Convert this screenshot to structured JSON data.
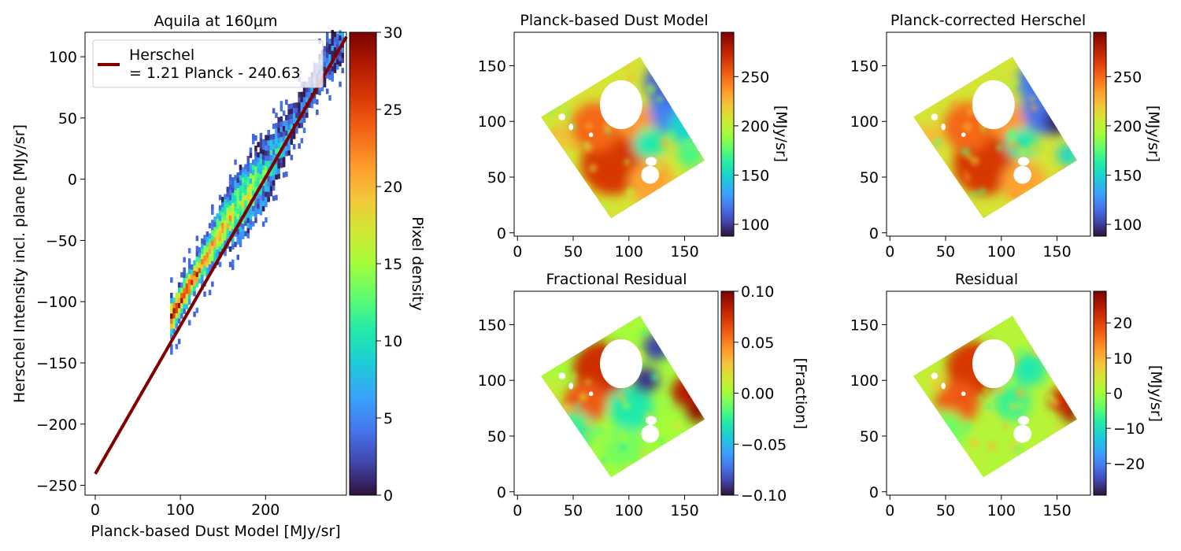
{
  "chart_data": [
    {
      "type": "heatmap",
      "title": "Aquila at 160μm",
      "xlabel": "Planck-based Dust Model [MJy/sr]",
      "ylabel": "Herschel Intensity incl. plane [MJy/sr]",
      "xlim": [
        -12,
        295
      ],
      "ylim": [
        -258,
        120
      ],
      "xticks": [
        0,
        100,
        200
      ],
      "yticks": [
        100,
        50,
        0,
        -50,
        -100,
        -150,
        -200,
        -250
      ],
      "colorbar": {
        "label": "Pixel density",
        "range": [
          0,
          30
        ],
        "ticks": [
          0,
          5,
          10,
          15,
          20,
          25,
          30
        ],
        "colormap": "turbo"
      },
      "fit_line": {
        "slope": 1.21,
        "intercept": -240.63,
        "x_range": [
          0,
          295
        ],
        "color": "#800000"
      },
      "legend": {
        "position": "top-left",
        "line1": "Herschel",
        "line2": "= 1.21 Planck - 240.63"
      },
      "density_cloud": {
        "centerline": [
          [
            90,
            -112
          ],
          [
            150,
            -40
          ],
          [
            200,
            5
          ],
          [
            280,
            105
          ]
        ],
        "min_x": 88,
        "max_x": 290,
        "peak_density": 30
      }
    },
    {
      "type": "heatmap",
      "title": "Planck-based Dust Model",
      "xlim": [
        -3,
        180
      ],
      "ylim": [
        -3,
        180
      ],
      "xticks": [
        0,
        50,
        100,
        150
      ],
      "yticks": [
        0,
        50,
        100,
        150
      ],
      "colorbar": {
        "label": "[MJy/sr]",
        "range": [
          88,
          295
        ],
        "ticks": [
          100,
          150,
          200,
          250
        ],
        "colormap": "turbo"
      }
    },
    {
      "type": "heatmap",
      "title": "Planck-corrected Herschel",
      "xlim": [
        -3,
        180
      ],
      "ylim": [
        -3,
        180
      ],
      "xticks": [
        0,
        50,
        100,
        150
      ],
      "yticks": [
        0,
        50,
        100,
        150
      ],
      "colorbar": {
        "label": "[MJy/sr]",
        "range": [
          88,
          295
        ],
        "ticks": [
          100,
          150,
          200,
          250
        ],
        "colormap": "turbo"
      }
    },
    {
      "type": "heatmap",
      "title": "Fractional Residual",
      "xlim": [
        -3,
        180
      ],
      "ylim": [
        -3,
        180
      ],
      "xticks": [
        0,
        50,
        100,
        150
      ],
      "yticks": [
        0,
        50,
        100,
        150
      ],
      "colorbar": {
        "label": "[Fraction]",
        "range": [
          -0.1,
          0.1
        ],
        "ticks": [
          -0.1,
          -0.05,
          0.0,
          0.05,
          0.1
        ],
        "tick_labels": [
          "−0.10",
          "−0.05",
          "0.00",
          "0.05",
          "0.10"
        ],
        "colormap": "turbo"
      }
    },
    {
      "type": "heatmap",
      "title": "Residual",
      "xlim": [
        -3,
        180
      ],
      "ylim": [
        -3,
        180
      ],
      "xticks": [
        0,
        50,
        100,
        150
      ],
      "yticks": [
        0,
        50,
        100,
        150
      ],
      "colorbar": {
        "label": "[MJy/sr]",
        "range": [
          -29,
          29
        ],
        "ticks": [
          -20,
          -10,
          0,
          10,
          20
        ],
        "tick_labels": [
          "−20",
          "−10",
          "0",
          "10",
          "20"
        ],
        "colormap": "turbo"
      }
    }
  ],
  "map_footprint": [
    [
      21,
      104
    ],
    [
      84,
      13
    ],
    [
      168,
      65
    ],
    [
      110,
      158
    ]
  ],
  "map_holes": [
    {
      "cx": 93,
      "cy": 115,
      "rx": 19,
      "ry": 22
    },
    {
      "cx": 119,
      "cy": 52,
      "rx": 8,
      "ry": 8
    },
    {
      "cx": 120,
      "cy": 64,
      "rx": 5,
      "ry": 4
    },
    {
      "cx": 40,
      "cy": 104,
      "rx": 3,
      "ry": 3
    },
    {
      "cx": 48,
      "cy": 95,
      "rx": 2,
      "ry": 3
    },
    {
      "cx": 66,
      "cy": 88,
      "rx": 2,
      "ry": 2
    }
  ]
}
